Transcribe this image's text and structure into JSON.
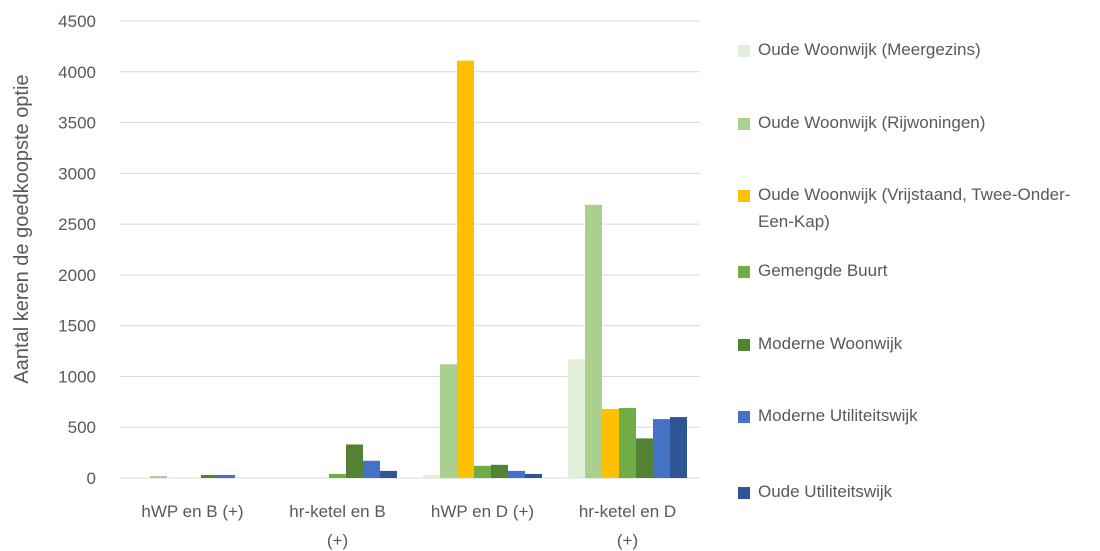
{
  "chart_data": {
    "type": "bar",
    "ylabel": "Aantal keren de goedkoopste optie",
    "ylim": [
      0,
      4500
    ],
    "yticks": [
      "0",
      "500",
      "1000",
      "1500",
      "2000",
      "2500",
      "3000",
      "3500",
      "4000",
      "4500"
    ],
    "categories": [
      [
        "hWP en B (+)"
      ],
      [
        "hr-ketel en B",
        "(+)"
      ],
      [
        "hWP en D (+)"
      ],
      [
        "hr-ketel en D",
        "(+)"
      ]
    ],
    "grid": true,
    "legend_position": "right",
    "series": [
      {
        "name": "Oude Woonwijk (Meergezins)",
        "color": "#e2efda",
        "values": [
          0,
          0,
          30,
          1170
        ]
      },
      {
        "name": "Oude Woonwijk (Rijwoningen)",
        "color": "#a9d08e",
        "values": [
          20,
          0,
          1120,
          2690
        ]
      },
      {
        "name": "Oude Woonwijk (Vrijstaand, Twee-Onder-Een-Kap)",
        "color": "#ffc000",
        "values": [
          0,
          0,
          4110,
          680
        ]
      },
      {
        "name": "Gemengde Buurt",
        "color": "#70ad47",
        "values": [
          0,
          40,
          120,
          690
        ]
      },
      {
        "name": "Moderne Woonwijk",
        "color": "#548235",
        "values": [
          30,
          330,
          130,
          390
        ]
      },
      {
        "name": "Moderne Utiliteitswijk",
        "color": "#4472c4",
        "values": [
          30,
          170,
          70,
          580
        ]
      },
      {
        "name": "Oude Utiliteitswijk",
        "color": "#2f5597",
        "values": [
          0,
          70,
          40,
          600
        ]
      }
    ]
  }
}
